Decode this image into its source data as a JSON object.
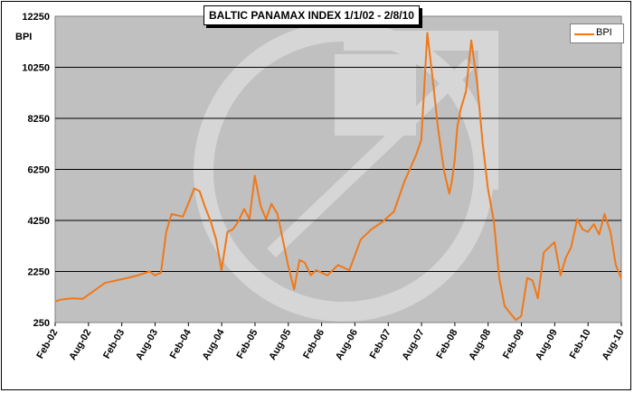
{
  "chart_data": {
    "type": "line",
    "title": "BALTIC PANAMAX INDEX 1/1/02 - 2/8/10",
    "ylabel": "BPI",
    "xlabel": "",
    "ylim": [
      250,
      12250
    ],
    "yticks": [
      "12250",
      "10250",
      "8250",
      "6250",
      "4250",
      "2250",
      "250"
    ],
    "xticks": [
      "Feb-02",
      "Aug-02",
      "Feb-03",
      "Aug-03",
      "Feb-04",
      "Aug-04",
      "Feb-05",
      "Aug-05",
      "Feb-06",
      "Aug-06",
      "Feb-07",
      "Aug-07",
      "Feb-08",
      "Aug-08",
      "Feb-09",
      "Aug-09",
      "Feb-10",
      "Aug-10"
    ],
    "grid": true,
    "legend_position": "top-right",
    "series": [
      {
        "name": "BPI",
        "color": "#f07818",
        "x": [
          2002.0,
          2002.17,
          2002.33,
          2002.5,
          2002.67,
          2002.83,
          2003.0,
          2003.17,
          2003.33,
          2003.5,
          2003.58,
          2003.67,
          2003.75,
          2003.83,
          2004.0,
          2004.08,
          2004.17,
          2004.25,
          2004.33,
          2004.42,
          2004.5,
          2004.58,
          2004.67,
          2004.75,
          2004.83,
          2004.92,
          2005.0,
          2005.08,
          2005.17,
          2005.25,
          2005.33,
          2005.42,
          2005.5,
          2005.58,
          2005.67,
          2005.75,
          2005.83,
          2005.92,
          2006.0,
          2006.17,
          2006.33,
          2006.5,
          2006.67,
          2006.83,
          2007.0,
          2007.17,
          2007.33,
          2007.5,
          2007.58,
          2007.67,
          2007.75,
          2007.83,
          2007.92,
          2008.0,
          2008.04,
          2008.08,
          2008.12,
          2008.17,
          2008.25,
          2008.33,
          2008.42,
          2008.5,
          2008.58,
          2008.67,
          2008.75,
          2008.83,
          2008.92,
          2009.0,
          2009.08,
          2009.17,
          2009.25,
          2009.33,
          2009.42,
          2009.5,
          2009.58,
          2009.67,
          2009.75,
          2009.83,
          2009.92,
          2010.0,
          2010.08,
          2010.17,
          2010.25,
          2010.33,
          2010.42,
          2010.5,
          2010.58,
          2010.67
        ],
        "values": [
          1000,
          1150,
          1200,
          1180,
          1500,
          1800,
          1900,
          2000,
          2100,
          2250,
          2100,
          2200,
          3800,
          4500,
          4400,
          4900,
          5500,
          5400,
          4800,
          4200,
          3500,
          2300,
          3800,
          3900,
          4200,
          4700,
          4300,
          6000,
          4800,
          4300,
          4900,
          4500,
          3500,
          2500,
          1550,
          2700,
          2600,
          2100,
          2300,
          2100,
          2500,
          2300,
          3500,
          3900,
          4200,
          4600,
          5800,
          6800,
          7400,
          11600,
          9800,
          7900,
          6200,
          5300,
          5800,
          6600,
          7900,
          8600,
          9300,
          11300,
          9600,
          7300,
          5500,
          4200,
          2000,
          900,
          600,
          350,
          500,
          2000,
          1900,
          1200,
          3000,
          3200,
          3400,
          2100,
          2800,
          3200,
          4300,
          3900,
          3800,
          4100,
          3700,
          4500,
          3800,
          2500,
          2000,
          2700
        ]
      }
    ]
  }
}
